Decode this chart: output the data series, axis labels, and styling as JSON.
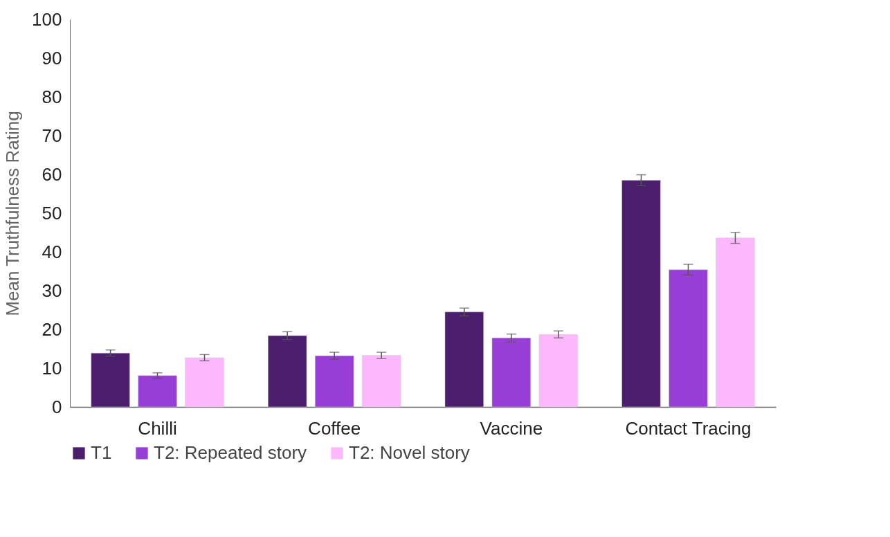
{
  "chart_data": {
    "type": "bar",
    "ylabel": "Mean Truthfulness Rating",
    "categories": [
      "Chilli",
      "Coffee",
      "Vaccine",
      "Contact Tracing"
    ],
    "series": [
      {
        "name": "T1",
        "color": "#4b1f6e",
        "values": [
          13.9,
          18.4,
          24.5,
          58.5
        ],
        "errors": [
          0.8,
          1.0,
          1.0,
          1.4
        ]
      },
      {
        "name": "T2: Repeated story",
        "color": "#973ed6",
        "values": [
          8.1,
          13.2,
          17.8,
          35.4
        ],
        "errors": [
          0.7,
          0.9,
          1.0,
          1.4
        ]
      },
      {
        "name": "T2: Novel story",
        "color": "#fdb7fd",
        "values": [
          12.7,
          13.3,
          18.7,
          43.6
        ],
        "errors": [
          0.8,
          0.8,
          0.9,
          1.4
        ]
      }
    ],
    "ylim": [
      0,
      100
    ],
    "yticks": [
      0,
      10,
      20,
      30,
      40,
      50,
      60,
      70,
      80,
      90,
      100
    ],
    "grid": false,
    "legend": "bottom"
  }
}
